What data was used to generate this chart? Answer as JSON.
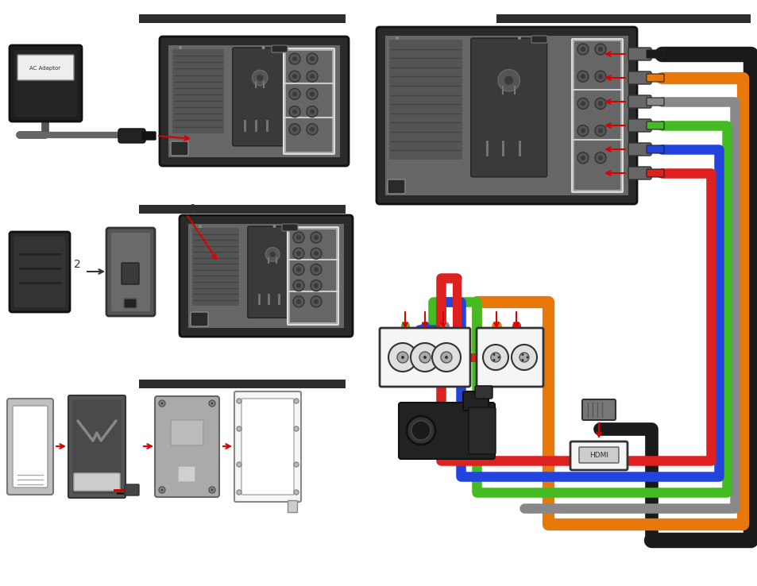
{
  "bg_color": "#ffffff",
  "dark_bar_color": "#2d2d2d",
  "cable_black": "#1a1a1a",
  "cable_orange": "#e8780a",
  "cable_red": "#dd2020",
  "cable_green": "#44bb22",
  "cable_blue": "#2244dd",
  "cable_gray": "#888888",
  "monitor_outer": "#2a2a2a",
  "monitor_inner": "#666666",
  "monitor_dark": "#444444",
  "monitor_port_area": "#4a4a4a",
  "monitor_port_border": "#d8d8d8",
  "plug_body": "#777777",
  "plug_tip": "#555555",
  "bnc_box": "#f5f5f5",
  "bnc_circle_outer": "#e0e0e0",
  "bnc_circle_inner": "#aaaaaa",
  "adapter_body": "#222222",
  "adapter_label_bg": "#f0f0f0",
  "cable_dark_gray": "#555555",
  "battery_dark": "#3a3a3a",
  "battery_holder": "#5a5a5a",
  "vmount_gray1": "#b5b5b5",
  "vmount_gray2": "#999999",
  "vmount_gray3": "#aaaaaa",
  "vmount_frame": "#d8d8d8",
  "red_arrow": "#dd0000"
}
